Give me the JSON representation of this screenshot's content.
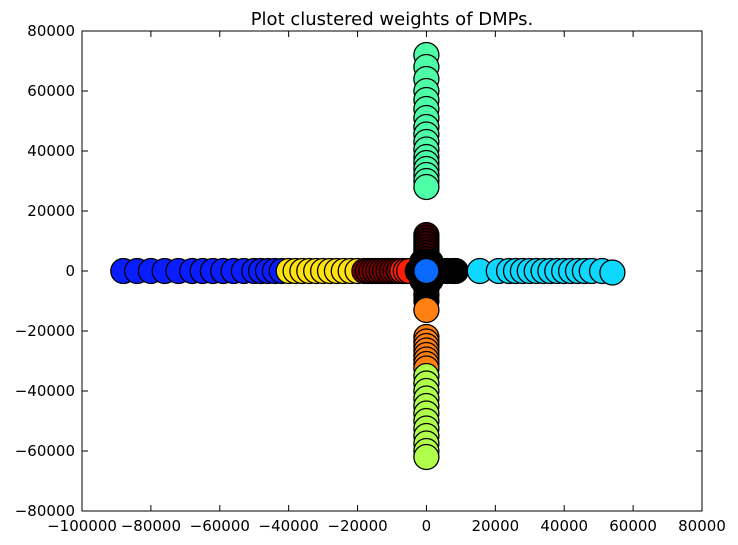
{
  "chart_data": {
    "type": "scatter",
    "title": "Plot clustered weights of DMPs.",
    "xlabel": "",
    "ylabel": "",
    "xlim": [
      -100000,
      80000
    ],
    "ylim": [
      -80000,
      80000
    ],
    "xticks": [
      -100000,
      -80000,
      -60000,
      -40000,
      -20000,
      0,
      20000,
      40000,
      60000,
      80000
    ],
    "yticks": [
      -80000,
      -60000,
      -40000,
      -20000,
      0,
      20000,
      40000,
      60000,
      80000
    ],
    "xtick_labels": [
      "−100000",
      "−80000",
      "−60000",
      "−40000",
      "−20000",
      "0",
      "20000",
      "40000",
      "60000",
      "80000"
    ],
    "ytick_labels": [
      "−80000",
      "−60000",
      "−40000",
      "−20000",
      "0",
      "20000",
      "40000",
      "60000",
      "80000"
    ],
    "grid": false,
    "legend": "none",
    "marker": "circle",
    "edge_color": "#000000",
    "series": [
      {
        "color": "#0a1dff",
        "points": [
          [
            -88000,
            0
          ],
          [
            -84000,
            0
          ],
          [
            -80000,
            0
          ],
          [
            -76000,
            0
          ],
          [
            -72000,
            0
          ],
          [
            -68000,
            0
          ],
          [
            -65000,
            0
          ],
          [
            -62000,
            0
          ],
          [
            -59000,
            0
          ],
          [
            -56000,
            0
          ],
          [
            -53000,
            0
          ],
          [
            -50000,
            0
          ],
          [
            -48000,
            0
          ],
          [
            -46000,
            0
          ],
          [
            -44000,
            0
          ],
          [
            -42000,
            0
          ]
        ]
      },
      {
        "color": "#ffe10f",
        "points": [
          [
            -40000,
            0
          ],
          [
            -38000,
            0
          ],
          [
            -36000,
            0
          ],
          [
            -34000,
            0
          ],
          [
            -32000,
            0
          ],
          [
            -30000,
            0
          ],
          [
            -28000,
            0
          ],
          [
            -26000,
            0
          ],
          [
            -24000,
            0
          ],
          [
            -22000,
            0
          ],
          [
            -20000,
            0
          ]
        ]
      },
      {
        "color": "#7a0000",
        "points": [
          [
            -18000,
            0
          ],
          [
            -17000,
            0
          ],
          [
            -16000,
            0
          ],
          [
            -15000,
            0
          ],
          [
            -14000,
            0
          ],
          [
            -13000,
            0
          ],
          [
            -12000,
            0
          ],
          [
            -11000,
            0
          ],
          [
            -10000,
            0
          ],
          [
            -9000,
            0
          ],
          [
            -8000,
            0
          ]
        ]
      },
      {
        "color": "#ff1e0a",
        "points": [
          [
            -7000,
            0
          ],
          [
            -6000,
            0
          ],
          [
            -5000,
            0
          ]
        ]
      },
      {
        "color": "#3c0000",
        "points": [
          [
            0,
            12000
          ],
          [
            0,
            11000
          ],
          [
            0,
            10000
          ],
          [
            0,
            9000
          ],
          [
            0,
            8000
          ],
          [
            0,
            7000
          ],
          [
            0,
            6000
          ],
          [
            0,
            5000
          ],
          [
            0,
            4000
          ],
          [
            0,
            3000
          ],
          [
            0,
            2000
          ],
          [
            0,
            -2000
          ],
          [
            0,
            -4000
          ],
          [
            0,
            -6000
          ],
          [
            0,
            -8000
          ]
        ]
      },
      {
        "color": "#000000",
        "points": [
          [
            -2500,
            0
          ],
          [
            -1500,
            0
          ],
          [
            1500,
            0
          ],
          [
            3000,
            0
          ],
          [
            4500,
            0
          ],
          [
            6000,
            0
          ],
          [
            7500,
            0
          ],
          [
            8500,
            0
          ],
          [
            -1200,
            -3000
          ],
          [
            1200,
            -3000
          ],
          [
            0,
            -10000
          ],
          [
            1200,
            3000
          ],
          [
            -1200,
            3000
          ]
        ]
      },
      {
        "color": "#ff7f10",
        "points": [
          [
            0,
            -13000
          ],
          [
            0,
            -22000
          ],
          [
            0,
            -23500
          ],
          [
            0,
            -25000
          ],
          [
            0,
            -26500
          ],
          [
            0,
            -28000
          ],
          [
            0,
            -29500
          ],
          [
            0,
            -31000
          ],
          [
            0,
            -32500
          ]
        ]
      },
      {
        "color": "#b0ff4a",
        "points": [
          [
            0,
            -35000
          ],
          [
            0,
            -37500
          ],
          [
            0,
            -40000
          ],
          [
            0,
            -42500
          ],
          [
            0,
            -45000
          ],
          [
            0,
            -47500
          ],
          [
            0,
            -50000
          ],
          [
            0,
            -52500
          ],
          [
            0,
            -55000
          ],
          [
            0,
            -57500
          ],
          [
            0,
            -60000
          ],
          [
            0,
            -62000
          ]
        ]
      },
      {
        "color": "#4dffa6",
        "points": [
          [
            0,
            72000
          ],
          [
            0,
            68000
          ],
          [
            0,
            64000
          ],
          [
            0,
            60000
          ],
          [
            0,
            57000
          ],
          [
            0,
            54000
          ],
          [
            0,
            51000
          ],
          [
            0,
            48000
          ],
          [
            0,
            45500
          ],
          [
            0,
            43000
          ],
          [
            0,
            40500
          ],
          [
            0,
            38000
          ],
          [
            0,
            36000
          ],
          [
            0,
            34000
          ],
          [
            0,
            32000
          ],
          [
            0,
            30000
          ],
          [
            0,
            28000
          ]
        ]
      },
      {
        "color": "#0fd8ff",
        "points": [
          [
            15500,
            0
          ],
          [
            21000,
            0
          ],
          [
            24000,
            0
          ],
          [
            26000,
            0
          ],
          [
            28000,
            0
          ],
          [
            30000,
            0
          ],
          [
            32000,
            0
          ],
          [
            34000,
            0
          ],
          [
            36000,
            0
          ],
          [
            38000,
            0
          ],
          [
            40000,
            0
          ],
          [
            42000,
            0
          ],
          [
            44000,
            0
          ],
          [
            46000,
            0
          ],
          [
            48000,
            0
          ],
          [
            51000,
            0
          ],
          [
            54000,
            -500
          ]
        ]
      },
      {
        "color": "#0a6aff",
        "points": [
          [
            0,
            0
          ]
        ]
      }
    ]
  }
}
